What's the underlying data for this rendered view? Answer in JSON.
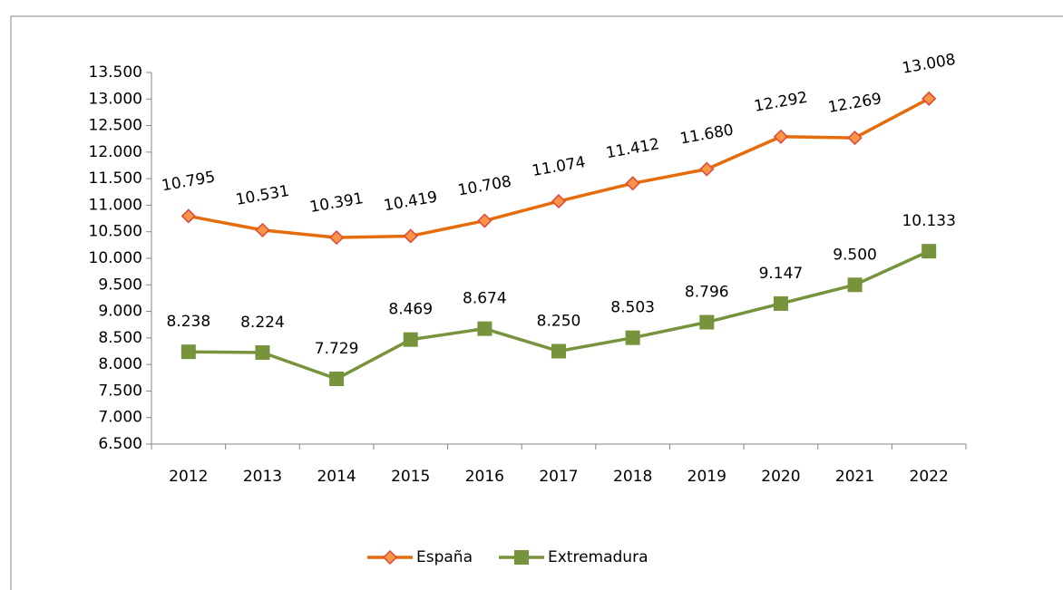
{
  "chart_data": {
    "type": "line",
    "categories": [
      "2012",
      "2013",
      "2014",
      "2015",
      "2016",
      "2017",
      "2018",
      "2019",
      "2020",
      "2021",
      "2022"
    ],
    "series": [
      {
        "name": "España",
        "color": "#e46c0a",
        "marker": "diamond",
        "values": [
          10795,
          10531,
          10391,
          10419,
          10708,
          11074,
          11412,
          11680,
          12292,
          12269,
          13008
        ],
        "value_labels": [
          "10.795",
          "10.531",
          "10.391",
          "10.419",
          "10.708",
          "11.074",
          "11.412",
          "11.680",
          "12.292",
          "12.269",
          "13.008"
        ]
      },
      {
        "name": "Extremadura",
        "color": "#77933c",
        "marker": "square",
        "values": [
          8238,
          8224,
          7729,
          8469,
          8674,
          8250,
          8503,
          8796,
          9147,
          9500,
          10133
        ],
        "value_labels": [
          "8.238",
          "8.224",
          "7.729",
          "8.469",
          "8.674",
          "8.250",
          "8.503",
          "8.796",
          "9.147",
          "9.500",
          "10.133"
        ]
      }
    ],
    "ylim": [
      6500,
      13500
    ],
    "yticks": [
      {
        "value": 6500,
        "label": "6.500"
      },
      {
        "value": 7000,
        "label": "7.000"
      },
      {
        "value": 7500,
        "label": "7.500"
      },
      {
        "value": 8000,
        "label": "8.000"
      },
      {
        "value": 8500,
        "label": "8.500"
      },
      {
        "value": 9000,
        "label": "9.000"
      },
      {
        "value": 9500,
        "label": "9.500"
      },
      {
        "value": 10000,
        "label": "10.000"
      },
      {
        "value": 10500,
        "label": "10.500"
      },
      {
        "value": 11000,
        "label": "11.000"
      },
      {
        "value": 11500,
        "label": "11.500"
      },
      {
        "value": 12000,
        "label": "12.000"
      },
      {
        "value": 12500,
        "label": "12.500"
      },
      {
        "value": 13000,
        "label": "13.000"
      },
      {
        "value": 13500,
        "label": "13.500"
      }
    ],
    "grid": false,
    "legend": "bottom"
  }
}
